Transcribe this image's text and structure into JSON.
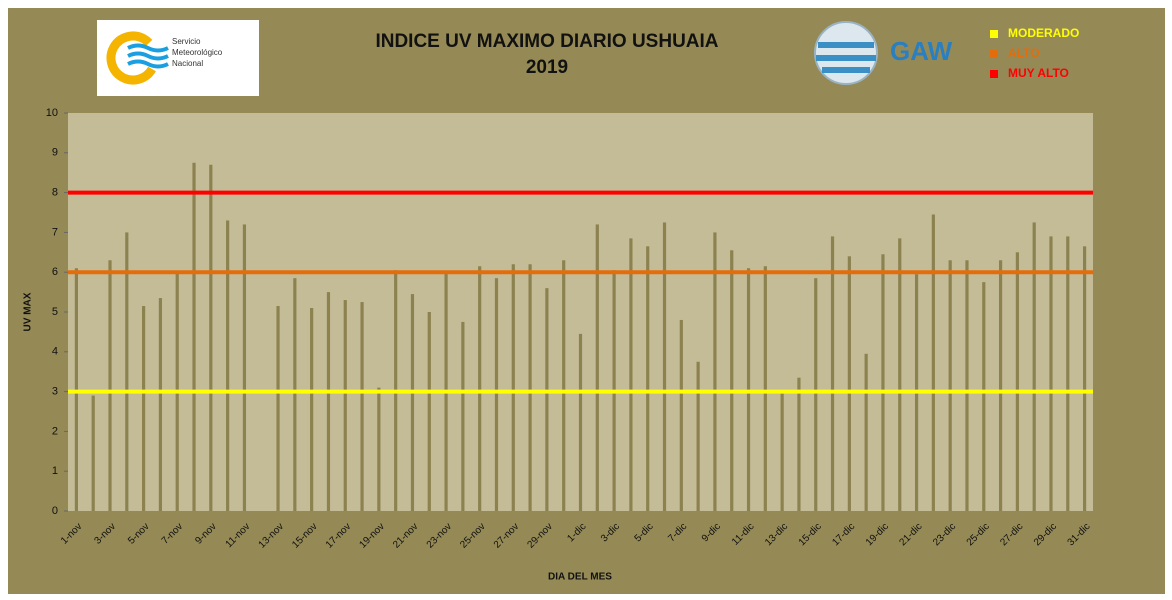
{
  "chart_data": {
    "type": "bar",
    "title": "INDICE UV MAXIMO DIARIO USHUAIA",
    "subtitle": "2019",
    "ylabel": "UV MAX",
    "xlabel": "DIA DEL MES",
    "logo_text": [
      "Servicio",
      "Meteorológico",
      "Nacional"
    ],
    "logo2_text": "GAW",
    "color": "#8c8250",
    "categories": [
      "1-nov",
      null,
      "3-nov",
      null,
      "5-nov",
      null,
      "7-nov",
      null,
      "9-nov",
      null,
      "11-nov",
      null,
      "13-nov",
      null,
      "15-nov",
      null,
      "17-nov",
      null,
      "19-nov",
      null,
      "21-nov",
      null,
      "23-nov",
      null,
      "25-nov",
      null,
      "27-nov",
      null,
      "29-nov",
      null,
      "1-dic",
      null,
      "3-dic",
      null,
      "5-dic",
      null,
      "7-dic",
      null,
      "9-dic",
      null,
      "11-dic",
      null,
      "13-dic",
      null,
      "15-dic",
      null,
      "17-dic",
      null,
      "19-dic",
      null,
      "21-dic",
      null,
      "23-dic",
      null,
      "25-dic",
      null,
      "27-dic",
      null,
      "29-dic",
      null,
      "31-dic"
    ],
    "values": [
      6.1,
      2.9,
      6.3,
      7.0,
      5.15,
      5.35,
      6.0,
      8.75,
      8.7,
      7.3,
      7.2,
      null,
      5.15,
      5.85,
      5.1,
      5.5,
      5.3,
      5.25,
      3.1,
      6.05,
      5.45,
      5.0,
      6.0,
      4.75,
      6.15,
      5.85,
      6.2,
      6.2,
      5.6,
      6.3,
      4.45,
      7.2,
      6.05,
      6.85,
      6.65,
      7.25,
      4.8,
      3.75,
      7.0,
      6.55,
      6.1,
      6.15,
      2.95,
      3.35,
      5.85,
      6.9,
      6.4,
      3.95,
      6.45,
      6.85,
      5.95,
      7.45,
      6.3,
      6.3,
      5.75,
      6.3,
      6.5,
      7.25,
      6.9,
      6.9,
      6.65
    ],
    "thresholds": [
      {
        "name": "MODERADO",
        "color": "#ffff00",
        "value": 3
      },
      {
        "name": "ALTO",
        "color": "#e46c0a",
        "value": 6
      },
      {
        "name": "MUY ALTO",
        "color": "#ff0000",
        "value": 8
      }
    ],
    "ylim": [
      0,
      10
    ],
    "yticks": [
      0,
      1,
      2,
      3,
      4,
      5,
      6,
      7,
      8,
      9,
      10
    ]
  }
}
